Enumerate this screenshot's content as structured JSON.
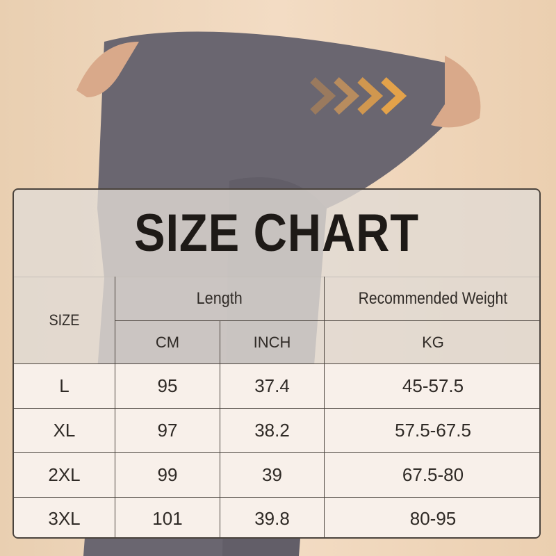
{
  "title": "SIZE CHART",
  "headers": {
    "size": "SIZE",
    "length": "Length",
    "weight": "Recommended Weight",
    "cm": "CM",
    "inch": "INCH",
    "kg": "KG"
  },
  "rows": [
    {
      "size": "L",
      "cm": "95",
      "inch": "37.4",
      "kg": "45-57.5"
    },
    {
      "size": "XL",
      "cm": "97",
      "inch": "38.2",
      "kg": "57.5-67.5"
    },
    {
      "size": "2XL",
      "cm": "99",
      "inch": "39",
      "kg": "67.5-80"
    },
    {
      "size": "3XL",
      "cm": "101",
      "inch": "39.8",
      "kg": "80-95"
    }
  ],
  "colors": {
    "arrow_light": "#b88c5e",
    "arrow_dark": "#e3a24a",
    "leggings": "#6a6670"
  }
}
